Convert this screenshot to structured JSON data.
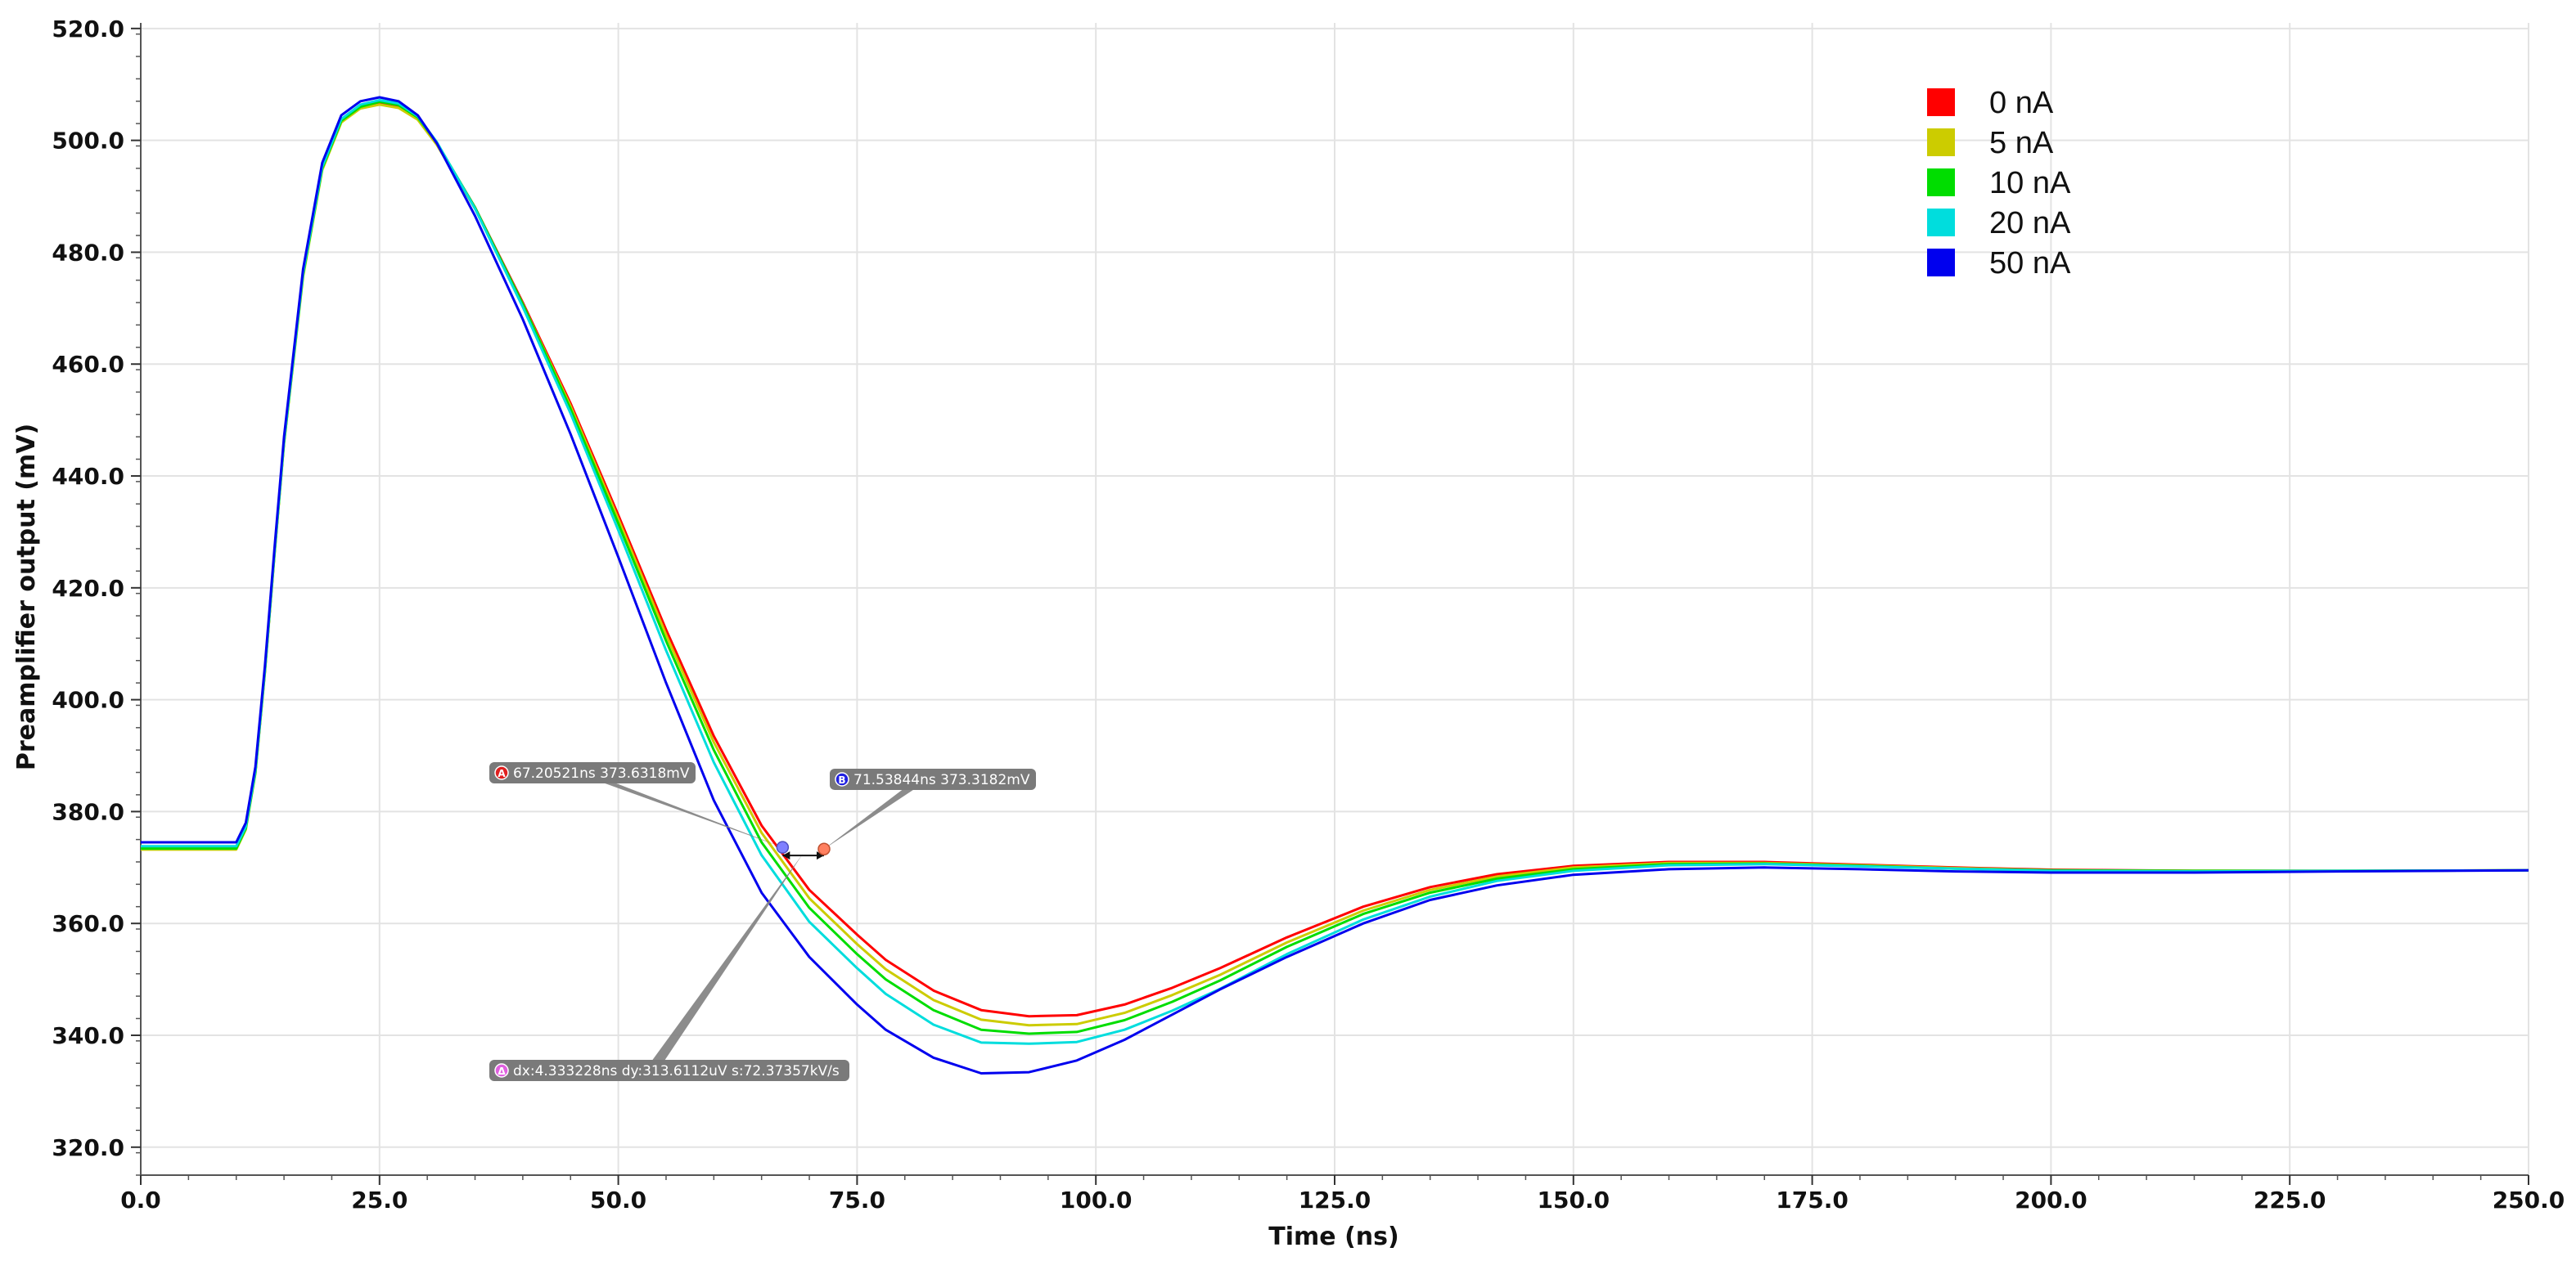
{
  "chart_data": {
    "type": "line",
    "xlabel": "Time (ns)",
    "ylabel": "Preamplifier output (mV)",
    "xlim": [
      0,
      250
    ],
    "ylim": [
      315,
      521
    ],
    "xticks": [
      0,
      25,
      50,
      75,
      100,
      125,
      150,
      175,
      200,
      225,
      250
    ],
    "xtick_labels": [
      "0.0",
      "25.0",
      "50.0",
      "75.0",
      "100.0",
      "125.0",
      "150.0",
      "175.0",
      "200.0",
      "225.0",
      "250.0"
    ],
    "yticks": [
      320,
      340,
      360,
      380,
      400,
      420,
      440,
      460,
      480,
      500,
      520
    ],
    "ytick_labels": [
      "320.0",
      "340.0",
      "360.0",
      "380.0",
      "400.0",
      "420.0",
      "440.0",
      "460.0",
      "480.0",
      "500.0",
      "520.0"
    ],
    "grid": true,
    "legend_position": "top-right",
    "series": [
      {
        "name": "0 nA",
        "color": "#ff0000",
        "x": [
          0,
          10,
          11,
          12,
          13,
          14,
          15,
          17,
          19,
          21,
          23,
          25,
          27,
          29,
          31,
          35,
          40,
          45,
          50,
          55,
          60,
          65,
          70,
          75,
          78,
          83,
          88,
          93,
          98,
          103,
          108,
          113,
          120,
          128,
          135,
          142,
          150,
          160,
          170,
          180,
          190,
          200,
          215,
          230,
          250
        ],
        "y": [
          373.5,
          373.5,
          377,
          387,
          405,
          426,
          446,
          476,
          495,
          503.5,
          506,
          506.8,
          506.2,
          504,
          499.5,
          488,
          471,
          453,
          433,
          412.5,
          393.5,
          377.5,
          366,
          358,
          353.5,
          348,
          344.5,
          343.4,
          343.6,
          345.5,
          348.5,
          352,
          357.5,
          363,
          366.5,
          368.8,
          370.3,
          371,
          371,
          370.5,
          370,
          369.6,
          369.4,
          369.4,
          369.5
        ]
      },
      {
        "name": "5 nA",
        "color": "#cccc00",
        "x": [
          0,
          10,
          11,
          12,
          13,
          14,
          15,
          17,
          19,
          21,
          23,
          25,
          27,
          29,
          31,
          35,
          40,
          45,
          50,
          55,
          60,
          65,
          70,
          75,
          78,
          83,
          88,
          93,
          98,
          103,
          108,
          113,
          120,
          128,
          135,
          142,
          150,
          160,
          170,
          180,
          190,
          200,
          215,
          230,
          250
        ],
        "y": [
          373.2,
          373.2,
          376.8,
          386.8,
          404.8,
          425.8,
          445.8,
          475.6,
          494.7,
          503.2,
          505.7,
          506.4,
          505.8,
          503.7,
          499.2,
          487.8,
          470.7,
          452.5,
          432.3,
          411.6,
          392.4,
          376.2,
          364.5,
          356.3,
          351.8,
          346.3,
          342.8,
          341.8,
          342,
          344,
          347.2,
          350.8,
          356.6,
          362.3,
          366,
          368.4,
          370,
          370.8,
          370.8,
          370.4,
          369.9,
          369.5,
          369.4,
          369.4,
          369.5
        ]
      },
      {
        "name": "10 nA",
        "color": "#00dd00",
        "x": [
          0,
          10,
          11,
          12,
          13,
          14,
          15,
          17,
          19,
          21,
          23,
          25,
          27,
          29,
          31,
          35,
          40,
          45,
          50,
          55,
          60,
          65,
          70,
          75,
          78,
          83,
          88,
          93,
          98,
          103,
          108,
          113,
          120,
          128,
          135,
          142,
          150,
          160,
          170,
          180,
          190,
          200,
          215,
          230,
          250
        ],
        "y": [
          373.4,
          373.4,
          377,
          387,
          405,
          426,
          446,
          476,
          495,
          503.5,
          506,
          506.9,
          506.3,
          504.1,
          499.6,
          488,
          470.7,
          452,
          431.5,
          410.5,
          391,
          374.5,
          362.8,
          354.5,
          350,
          344.5,
          341,
          340.3,
          340.6,
          342.7,
          346,
          349.8,
          355.8,
          361.7,
          365.5,
          368,
          369.7,
          370.6,
          370.7,
          370.3,
          369.8,
          369.5,
          369.4,
          369.4,
          369.5
        ]
      },
      {
        "name": "20 nA",
        "color": "#00dddd",
        "x": [
          0,
          10,
          11,
          12,
          13,
          14,
          15,
          17,
          19,
          21,
          23,
          25,
          27,
          29,
          31,
          35,
          40,
          45,
          50,
          55,
          60,
          65,
          70,
          75,
          78,
          83,
          88,
          93,
          98,
          103,
          108,
          113,
          120,
          128,
          135,
          142,
          150,
          160,
          170,
          180,
          190,
          200,
          215,
          230,
          250
        ],
        "y": [
          373.8,
          373.8,
          377.3,
          387.3,
          405.3,
          426.3,
          446.3,
          476.3,
          495.3,
          503.8,
          506.4,
          507.2,
          506.6,
          504.3,
          499.7,
          487.8,
          470.2,
          451.2,
          430.3,
          408.8,
          388.8,
          372.2,
          360.3,
          352,
          347.4,
          341.9,
          338.7,
          338.5,
          338.8,
          341,
          344.4,
          348.3,
          354.5,
          360.7,
          364.8,
          367.6,
          369.4,
          370.4,
          370.6,
          370.2,
          369.8,
          369.4,
          369.3,
          369.4,
          369.5
        ]
      },
      {
        "name": "50 nA",
        "color": "#0000ee",
        "x": [
          0,
          10,
          11,
          12,
          13,
          14,
          15,
          17,
          19,
          21,
          23,
          25,
          27,
          29,
          31,
          35,
          40,
          45,
          50,
          55,
          60,
          65,
          70,
          75,
          78,
          83,
          88,
          93,
          98,
          103,
          108,
          113,
          120,
          128,
          135,
          142,
          150,
          160,
          170,
          180,
          190,
          200,
          215,
          230,
          250
        ],
        "y": [
          374.5,
          374.5,
          378,
          388,
          406,
          427,
          447,
          477,
          496,
          504.5,
          507,
          507.7,
          507,
          504.5,
          499.5,
          486.5,
          468,
          447.5,
          425.5,
          403,
          382,
          365.5,
          354,
          345.5,
          341,
          336,
          333.2,
          333.4,
          335.5,
          339.2,
          343.7,
          348.2,
          354,
          360,
          364.2,
          366.8,
          368.7,
          369.7,
          370,
          369.7,
          369.3,
          369.1,
          369.1,
          369.3,
          369.5
        ]
      }
    ],
    "markers": [
      {
        "symbol": "A",
        "text": "67.20521ns 373.6318mV",
        "x": 67.2,
        "y": 373.6,
        "color": "#e02020"
      },
      {
        "symbol": "B",
        "text": "71.53844ns 373.3182mV",
        "x": 71.54,
        "y": 373.3,
        "color": "#2020e0"
      },
      {
        "symbol": "Δ",
        "text": "dx:4.333228ns dy:313.6112uV s:72.37357kV/s",
        "x": 67.2,
        "y": 333.5,
        "color": "#e060e0"
      }
    ]
  }
}
